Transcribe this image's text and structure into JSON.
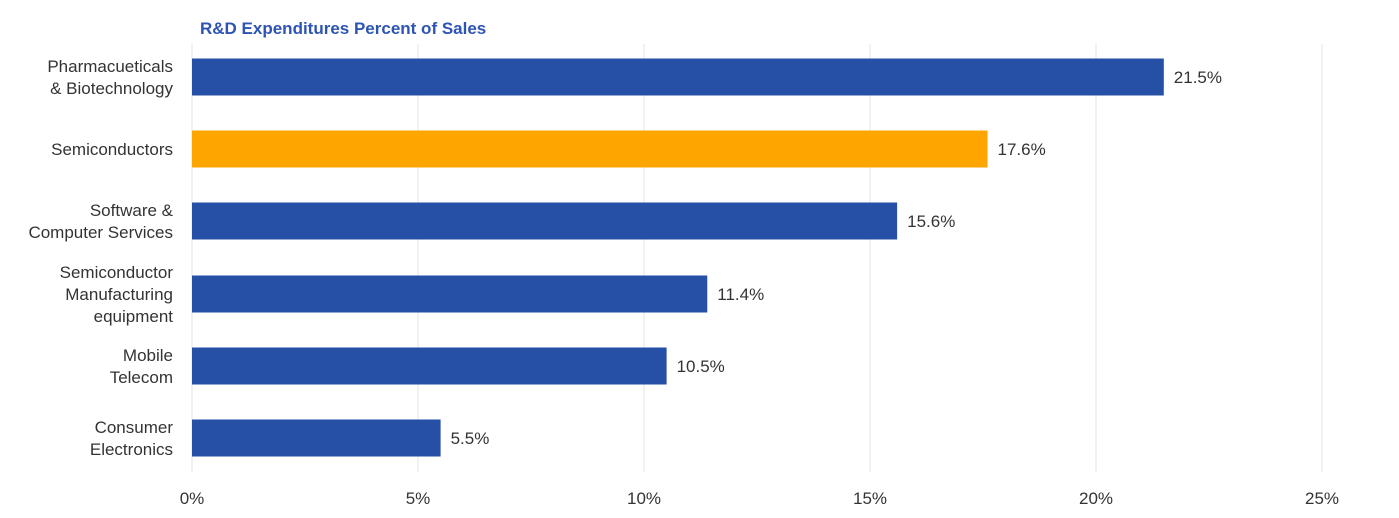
{
  "chart_data": {
    "type": "bar",
    "orientation": "horizontal",
    "title": "R&D Expenditures Percent of Sales",
    "categories": [
      [
        "Pharmacueticals",
        "& Biotechnology"
      ],
      [
        "Semiconductors"
      ],
      [
        "Software &",
        "Computer Services"
      ],
      [
        "Semiconductor",
        "Manufacturing",
        "equipment"
      ],
      [
        "Mobile",
        "Telecom"
      ],
      [
        "Consumer",
        "Electronics"
      ]
    ],
    "values": [
      21.5,
      17.6,
      15.6,
      11.4,
      10.5,
      5.5
    ],
    "value_labels": [
      "21.5%",
      "17.6%",
      "15.6%",
      "11.4%",
      "10.5%",
      "5.5%"
    ],
    "highlight_index": 1,
    "xlim": [
      0,
      25
    ],
    "xticks": [
      0,
      5,
      10,
      15,
      20,
      25
    ],
    "xtick_labels": [
      "0%",
      "5%",
      "10%",
      "15%",
      "20%",
      "25%"
    ],
    "xlabel": "",
    "ylabel": "",
    "grid": true,
    "legend": "none",
    "colors": {
      "bar": "#2550a5",
      "highlight": "#ffa500",
      "title": "#2e54b3",
      "grid": "#e3e3e3",
      "text": "#333333"
    }
  }
}
